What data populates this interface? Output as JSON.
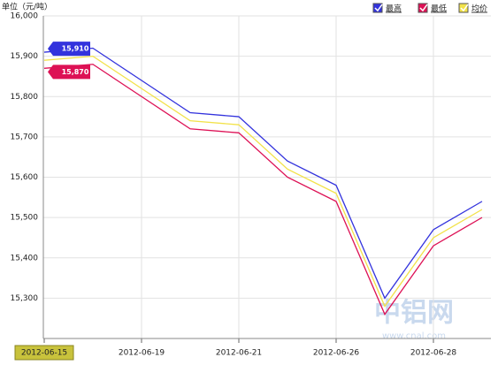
{
  "chart_data": {
    "type": "line",
    "y_label": "单位（元/吨）",
    "watermark": "中铝网",
    "watermark_url": "www.cnal.com",
    "categories": [
      "2012-06-15",
      null,
      "2012-06-19",
      null,
      "2012-06-21",
      null,
      "2012-06-26",
      null,
      "2012-06-28",
      null
    ],
    "series": [
      {
        "name": "最高",
        "color": "#3333dd",
        "values": [
          15910,
          15920,
          15840,
          15760,
          15750,
          15640,
          15580,
          15300,
          15470,
          15540
        ],
        "value_labels": [
          "15,910",
          null,
          null,
          null,
          null,
          null,
          null,
          null,
          null,
          null
        ]
      },
      {
        "name": "最低",
        "color": "#dd1155",
        "values": [
          15870,
          15880,
          15800,
          15720,
          15710,
          15600,
          15540,
          15260,
          15430,
          15500
        ],
        "value_labels": [
          "15,870",
          null,
          null,
          null,
          null,
          null,
          null,
          null,
          null,
          null
        ]
      },
      {
        "name": "均价",
        "color": "#f2e24a",
        "values": [
          15890,
          15900,
          15820,
          15740,
          15730,
          15620,
          15560,
          15280,
          15450,
          15520
        ]
      }
    ],
    "ylim": [
      15200,
      16000
    ],
    "yticks": [
      {
        "value": 15300,
        "label": "15,300"
      },
      {
        "value": 15400,
        "label": "15,400"
      },
      {
        "value": 15500,
        "label": "15,500"
      },
      {
        "value": 15600,
        "label": "15,600"
      },
      {
        "value": 15700,
        "label": "15,700"
      },
      {
        "value": 15800,
        "label": "15,800"
      },
      {
        "value": 15900,
        "label": "15,900"
      },
      {
        "value": 16000,
        "label": "16,000"
      }
    ],
    "grid": true,
    "legend": "top-right"
  }
}
